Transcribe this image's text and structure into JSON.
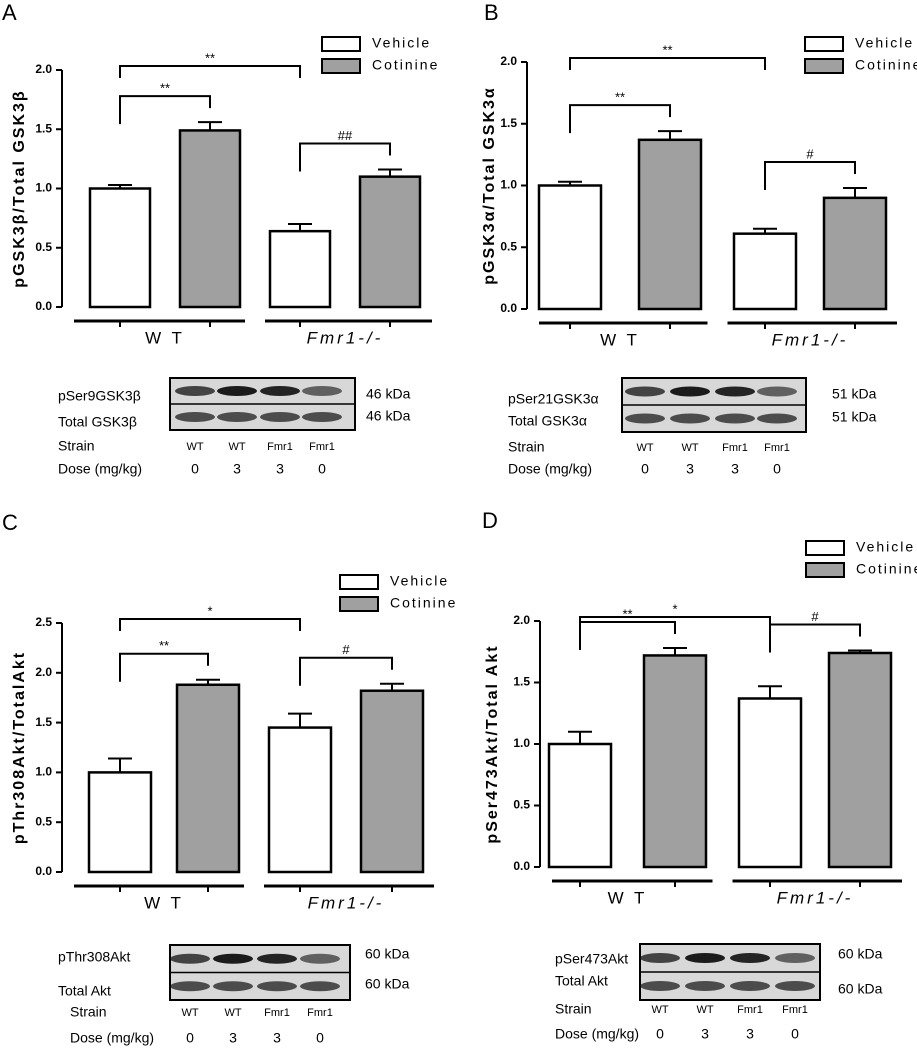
{
  "chart_data": [
    {
      "type": "bar",
      "panel": "A",
      "ylabel": "pGSK3β/Total GSK3β",
      "categories": [
        "W T",
        "Fmr1-/-"
      ],
      "series": [
        {
          "name": "Vehicle",
          "color": "#ffffff",
          "values": [
            1.0,
            0.64
          ],
          "errors": [
            0.03,
            0.06
          ]
        },
        {
          "name": "Cotinine",
          "color": "#a0a0a0",
          "values": [
            1.49,
            1.1
          ],
          "errors": [
            0.07,
            0.06
          ]
        }
      ],
      "ylim": [
        0,
        2.0
      ],
      "yticks": [
        {
          "value": 0,
          "label": "0.0"
        },
        {
          "value": 0.5,
          "label": "0.5"
        },
        {
          "value": 1.0,
          "label": "1.0"
        },
        {
          "value": 1.5,
          "label": "1.5"
        },
        {
          "value": 2.0,
          "label": "2.0"
        }
      ],
      "annotations": [
        "**",
        "**",
        "##"
      ],
      "blot": {
        "rows": [
          {
            "label": "pSer9GSK3β",
            "size": "46 kDa"
          },
          {
            "label": "Total GSK3β",
            "size": "46 kDa"
          }
        ],
        "strain_label": "Strain",
        "strains": [
          "WT",
          "WT",
          "Fmr1",
          "Fmr1"
        ],
        "dose_label": "Dose (mg/kg)",
        "doses": [
          0,
          3,
          3,
          0
        ]
      }
    },
    {
      "type": "bar",
      "panel": "B",
      "ylabel": "pGSK3α/Total GSK3α",
      "categories": [
        "W T",
        "Fmr1-/-"
      ],
      "series": [
        {
          "name": "Vehicle",
          "color": "#ffffff",
          "values": [
            1.0,
            0.61
          ],
          "errors": [
            0.03,
            0.04
          ]
        },
        {
          "name": "Cotinine",
          "color": "#a0a0a0",
          "values": [
            1.37,
            0.9
          ],
          "errors": [
            0.07,
            0.08
          ]
        }
      ],
      "ylim": [
        0,
        2.0
      ],
      "yticks": [
        {
          "value": 0,
          "label": "0.0"
        },
        {
          "value": 0.5,
          "label": "0.5"
        },
        {
          "value": 1.0,
          "label": "1.0"
        },
        {
          "value": 1.5,
          "label": "1.5"
        },
        {
          "value": 2.0,
          "label": "2.0"
        }
      ],
      "annotations": [
        "**",
        "**",
        "#"
      ],
      "blot": {
        "rows": [
          {
            "label": "pSer21GSK3α",
            "size": "51 kDa"
          },
          {
            "label": "Total GSK3α",
            "size": "51 kDa"
          }
        ],
        "strain_label": "Strain",
        "strains": [
          "WT",
          "WT",
          "Fmr1",
          "Fmr1"
        ],
        "dose_label": "Dose (mg/kg)",
        "doses": [
          0,
          3,
          3,
          0
        ]
      }
    },
    {
      "type": "bar",
      "panel": "C",
      "ylabel": "pThr308Akt/TotalAkt",
      "categories": [
        "W T",
        "Fmr1-/-"
      ],
      "series": [
        {
          "name": "Vehicle",
          "color": "#ffffff",
          "values": [
            1.0,
            1.45
          ],
          "errors": [
            0.14,
            0.14
          ]
        },
        {
          "name": "Cotinine",
          "color": "#a0a0a0",
          "values": [
            1.88,
            1.82
          ],
          "errors": [
            0.05,
            0.07
          ]
        }
      ],
      "ylim": [
        0,
        2.5
      ],
      "yticks": [
        {
          "value": 0,
          "label": "0.0"
        },
        {
          "value": 0.5,
          "label": "0.5"
        },
        {
          "value": 1.0,
          "label": "1.0"
        },
        {
          "value": 1.5,
          "label": "1.5"
        },
        {
          "value": 2.0,
          "label": "2.0"
        },
        {
          "value": 2.5,
          "label": "2.5"
        }
      ],
      "annotations": [
        "*",
        "**",
        "#"
      ],
      "blot": {
        "rows": [
          {
            "label": "pThr308Akt",
            "size": "60 kDa"
          },
          {
            "label": "Total Akt",
            "size": "60 kDa"
          }
        ],
        "strain_label": "Strain",
        "strains": [
          "WT",
          "WT",
          "Fmr1",
          "Fmr1"
        ],
        "dose_label": "Dose (mg/kg)",
        "doses": [
          0,
          3,
          3,
          0
        ]
      }
    },
    {
      "type": "bar",
      "panel": "D",
      "ylabel": "pSer473Akt/Total Akt",
      "categories": [
        "W T",
        "Fmr1-/-"
      ],
      "series": [
        {
          "name": "Vehicle",
          "color": "#ffffff",
          "values": [
            1.0,
            1.37
          ],
          "errors": [
            0.1,
            0.1
          ]
        },
        {
          "name": "Cotinine",
          "color": "#a0a0a0",
          "values": [
            1.72,
            1.74
          ],
          "errors": [
            0.06,
            0.02
          ]
        }
      ],
      "ylim": [
        0,
        2.0
      ],
      "yticks": [
        {
          "value": 0,
          "label": "0.0"
        },
        {
          "value": 0.5,
          "label": "0.5"
        },
        {
          "value": 1.0,
          "label": "1.0"
        },
        {
          "value": 1.5,
          "label": "1.5"
        },
        {
          "value": 2.0,
          "label": "2.0"
        }
      ],
      "annotations": [
        "*",
        "**",
        "#"
      ],
      "blot": {
        "rows": [
          {
            "label": "pSer473Akt",
            "size": "60 kDa"
          },
          {
            "label": "Total Akt",
            "size": "60 kDa"
          }
        ],
        "strain_label": "Strain",
        "strains": [
          "WT",
          "WT",
          "Fmr1",
          "Fmr1"
        ],
        "dose_label": "Dose (mg/kg)",
        "doses": [
          0,
          3,
          3,
          0
        ]
      }
    }
  ]
}
